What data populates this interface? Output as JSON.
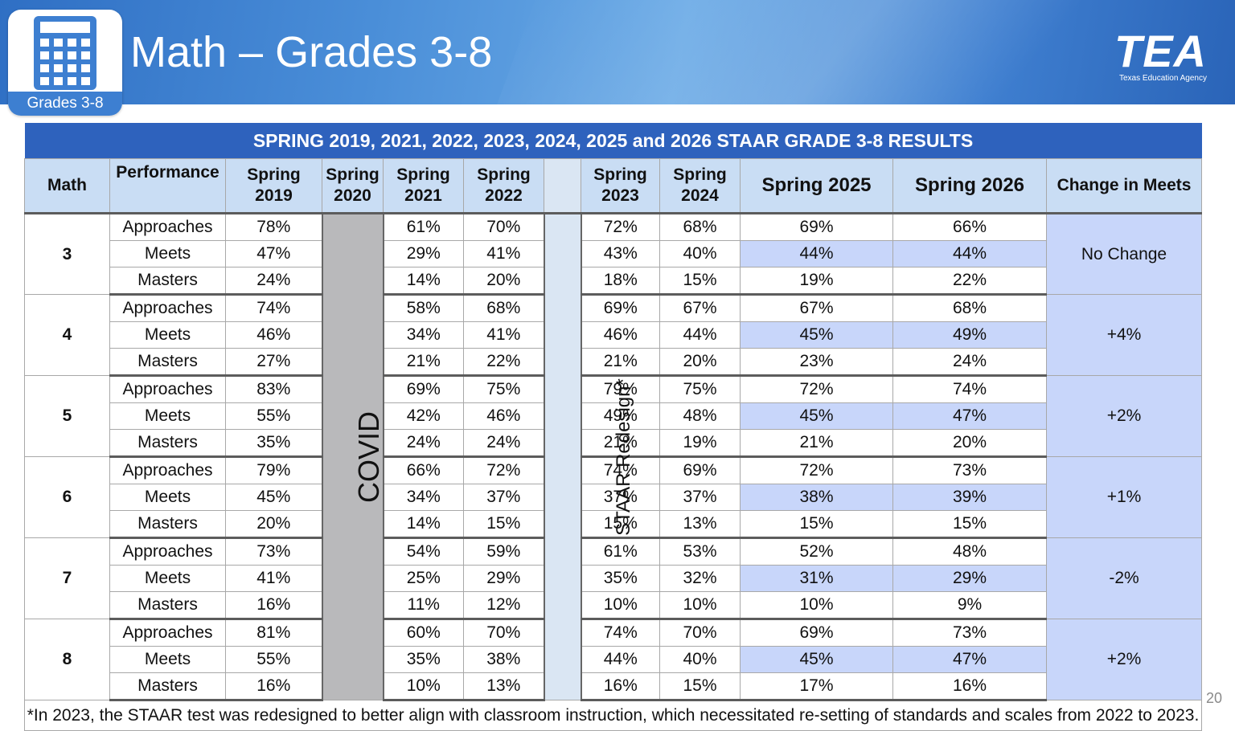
{
  "header": {
    "title": "Math – Grades 3-8",
    "badge": "Grades 3-8",
    "logo": {
      "word": "TEA",
      "subtitle": "Texas Education Agency"
    }
  },
  "table": {
    "banner": "SPRING 2019, 2021, 2022, 2023, 2024, 2025 and 2026 STAAR GRADE 3-8 RESULTS",
    "columns": {
      "math": "Math",
      "performance": "Performance",
      "s2019": [
        "Spring",
        "2019"
      ],
      "s2020": [
        "Spring",
        "2020"
      ],
      "s2021": [
        "Spring",
        "2021"
      ],
      "s2022": [
        "Spring",
        "2022"
      ],
      "s2023": [
        "Spring",
        "2023"
      ],
      "s2024": [
        "Spring",
        "2024"
      ],
      "s2025": "Spring 2025",
      "s2026": "Spring 2026",
      "change": "Change in Meets"
    },
    "covid_label": "COVID",
    "redesign_label": "STAAR Redesign*",
    "grades": [
      {
        "grade": "3",
        "change": "No Change",
        "rows": [
          {
            "level": "Approaches",
            "v2019": "78%",
            "v2021": "61%",
            "v2022": "70%",
            "v2023": "72%",
            "v2024": "68%",
            "v2025": "69%",
            "v2026": "66%"
          },
          {
            "level": "Meets",
            "v2019": "47%",
            "v2021": "29%",
            "v2022": "41%",
            "v2023": "43%",
            "v2024": "40%",
            "v2025": "44%",
            "v2026": "44%"
          },
          {
            "level": "Masters",
            "v2019": "24%",
            "v2021": "14%",
            "v2022": "20%",
            "v2023": "18%",
            "v2024": "15%",
            "v2025": "19%",
            "v2026": "22%"
          }
        ]
      },
      {
        "grade": "4",
        "change": "+4%",
        "rows": [
          {
            "level": "Approaches",
            "v2019": "74%",
            "v2021": "58%",
            "v2022": "68%",
            "v2023": "69%",
            "v2024": "67%",
            "v2025": "67%",
            "v2026": "68%"
          },
          {
            "level": "Meets",
            "v2019": "46%",
            "v2021": "34%",
            "v2022": "41%",
            "v2023": "46%",
            "v2024": "44%",
            "v2025": "45%",
            "v2026": "49%"
          },
          {
            "level": "Masters",
            "v2019": "27%",
            "v2021": "21%",
            "v2022": "22%",
            "v2023": "21%",
            "v2024": "20%",
            "v2025": "23%",
            "v2026": "24%"
          }
        ]
      },
      {
        "grade": "5",
        "change": "+2%",
        "rows": [
          {
            "level": "Approaches",
            "v2019": "83%",
            "v2021": "69%",
            "v2022": "75%",
            "v2023": "79%",
            "v2024": "75%",
            "v2025": "72%",
            "v2026": "74%"
          },
          {
            "level": "Meets",
            "v2019": "55%",
            "v2021": "42%",
            "v2022": "46%",
            "v2023": "49%",
            "v2024": "48%",
            "v2025": "45%",
            "v2026": "47%"
          },
          {
            "level": "Masters",
            "v2019": "35%",
            "v2021": "24%",
            "v2022": "24%",
            "v2023": "21%",
            "v2024": "19%",
            "v2025": "21%",
            "v2026": "20%"
          }
        ]
      },
      {
        "grade": "6",
        "change": "+1%",
        "rows": [
          {
            "level": "Approaches",
            "v2019": "79%",
            "v2021": "66%",
            "v2022": "72%",
            "v2023": "74%",
            "v2024": "69%",
            "v2025": "72%",
            "v2026": "73%"
          },
          {
            "level": "Meets",
            "v2019": "45%",
            "v2021": "34%",
            "v2022": "37%",
            "v2023": "37%",
            "v2024": "37%",
            "v2025": "38%",
            "v2026": "39%"
          },
          {
            "level": "Masters",
            "v2019": "20%",
            "v2021": "14%",
            "v2022": "15%",
            "v2023": "15%",
            "v2024": "13%",
            "v2025": "15%",
            "v2026": "15%"
          }
        ]
      },
      {
        "grade": "7",
        "change": "-2%",
        "rows": [
          {
            "level": "Approaches",
            "v2019": "73%",
            "v2021": "54%",
            "v2022": "59%",
            "v2023": "61%",
            "v2024": "53%",
            "v2025": "52%",
            "v2026": "48%"
          },
          {
            "level": "Meets",
            "v2019": "41%",
            "v2021": "25%",
            "v2022": "29%",
            "v2023": "35%",
            "v2024": "32%",
            "v2025": "31%",
            "v2026": "29%"
          },
          {
            "level": "Masters",
            "v2019": "16%",
            "v2021": "11%",
            "v2022": "12%",
            "v2023": "10%",
            "v2024": "10%",
            "v2025": "10%",
            "v2026": "9%"
          }
        ]
      },
      {
        "grade": "8",
        "change": "+2%",
        "rows": [
          {
            "level": "Approaches",
            "v2019": "81%",
            "v2021": "60%",
            "v2022": "70%",
            "v2023": "74%",
            "v2024": "70%",
            "v2025": "69%",
            "v2026": "73%"
          },
          {
            "level": "Meets",
            "v2019": "55%",
            "v2021": "35%",
            "v2022": "38%",
            "v2023": "44%",
            "v2024": "40%",
            "v2025": "45%",
            "v2026": "47%"
          },
          {
            "level": "Masters",
            "v2019": "16%",
            "v2021": "10%",
            "v2022": "13%",
            "v2023": "16%",
            "v2024": "15%",
            "v2025": "17%",
            "v2026": "16%"
          }
        ]
      }
    ],
    "footnote": "*In 2023, the STAAR test was redesigned to better align with classroom instruction, which necessitated re-setting of standards and scales from 2022 to 2023."
  },
  "slide_number": "20",
  "colors": {
    "banner": "#2e62bd",
    "header_fill": "#c9ddf4",
    "highlight": "#c8d6fa",
    "covid": "#b9b9bb",
    "redesign": "#dae6f3"
  }
}
